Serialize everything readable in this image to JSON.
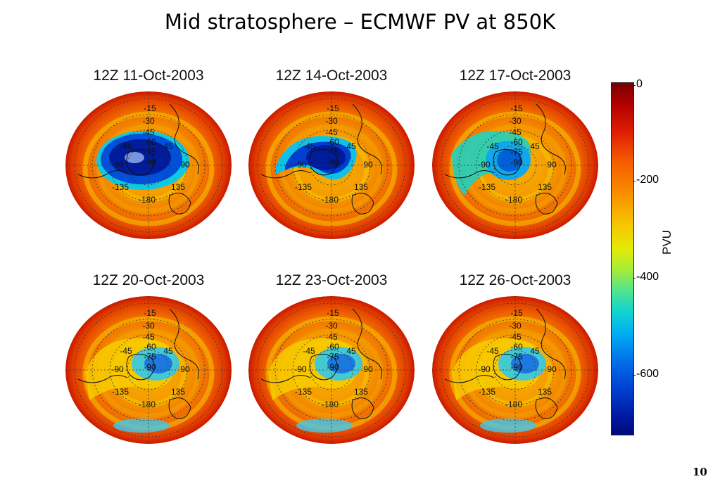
{
  "title": "Mid stratosphere – ECMWF PV at 850K",
  "panels": [
    {
      "label": "12Z 11-Oct-2003",
      "vortex": "strong"
    },
    {
      "label": "12Z 14-Oct-2003",
      "vortex": "strong-shifted"
    },
    {
      "label": "12Z 17-Oct-2003",
      "vortex": "weakening"
    },
    {
      "label": "12Z 20-Oct-2003",
      "vortex": "weak"
    },
    {
      "label": "12Z 23-Oct-2003",
      "vortex": "weak"
    },
    {
      "label": "12Z 26-Oct-2003",
      "vortex": "weak"
    }
  ],
  "map_labels": [
    "-15",
    "-30",
    "-45",
    "-60",
    "-75",
    "-90",
    "-45",
    "45",
    "-90",
    "90",
    "-135",
    "135",
    "-180"
  ],
  "colorbar": {
    "label": "PVU",
    "ticks": [
      "0",
      "-200",
      "-400",
      "-600"
    ]
  },
  "page_number": "10"
}
